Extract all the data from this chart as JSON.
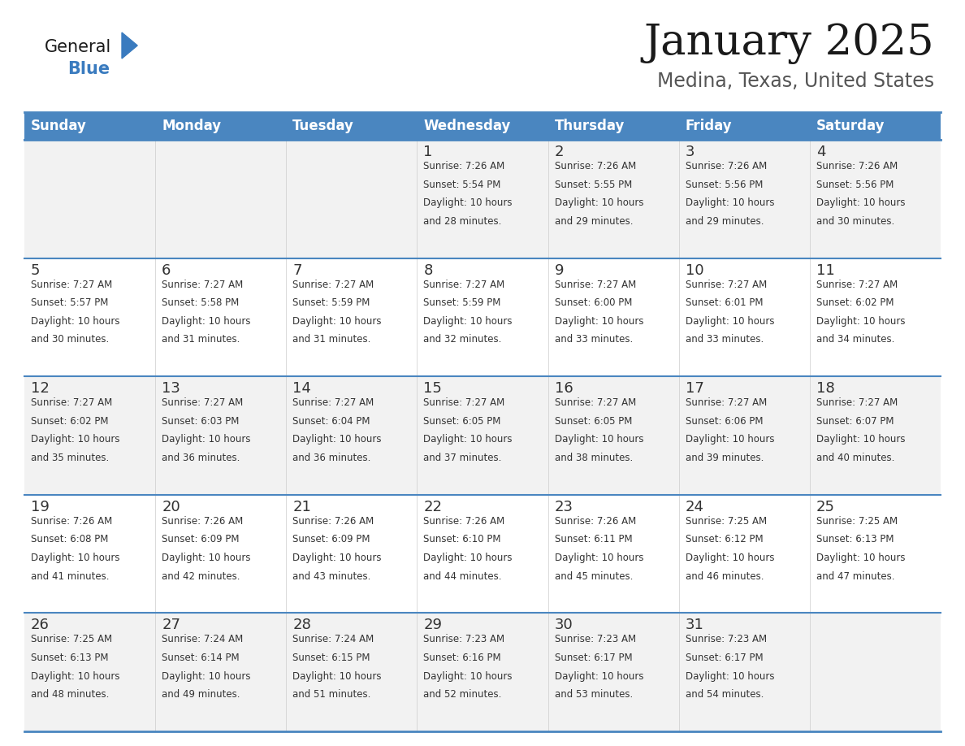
{
  "title": "January 2025",
  "subtitle": "Medina, Texas, United States",
  "header_color": "#4a86c0",
  "header_text_color": "#ffffff",
  "border_color": "#4a86c0",
  "text_color": "#333333",
  "days_of_week": [
    "Sunday",
    "Monday",
    "Tuesday",
    "Wednesday",
    "Thursday",
    "Friday",
    "Saturday"
  ],
  "row_bg_colors": [
    "#f2f2f2",
    "#ffffff",
    "#f2f2f2",
    "#ffffff",
    "#f2f2f2"
  ],
  "calendar_data": [
    [
      {
        "day": "",
        "sunrise": "",
        "sunset": "",
        "daylight": ""
      },
      {
        "day": "",
        "sunrise": "",
        "sunset": "",
        "daylight": ""
      },
      {
        "day": "",
        "sunrise": "",
        "sunset": "",
        "daylight": ""
      },
      {
        "day": "1",
        "sunrise": "7:26 AM",
        "sunset": "5:54 PM",
        "daylight": "10 hours and 28 minutes."
      },
      {
        "day": "2",
        "sunrise": "7:26 AM",
        "sunset": "5:55 PM",
        "daylight": "10 hours and 29 minutes."
      },
      {
        "day": "3",
        "sunrise": "7:26 AM",
        "sunset": "5:56 PM",
        "daylight": "10 hours and 29 minutes."
      },
      {
        "day": "4",
        "sunrise": "7:26 AM",
        "sunset": "5:56 PM",
        "daylight": "10 hours and 30 minutes."
      }
    ],
    [
      {
        "day": "5",
        "sunrise": "7:27 AM",
        "sunset": "5:57 PM",
        "daylight": "10 hours and 30 minutes."
      },
      {
        "day": "6",
        "sunrise": "7:27 AM",
        "sunset": "5:58 PM",
        "daylight": "10 hours and 31 minutes."
      },
      {
        "day": "7",
        "sunrise": "7:27 AM",
        "sunset": "5:59 PM",
        "daylight": "10 hours and 31 minutes."
      },
      {
        "day": "8",
        "sunrise": "7:27 AM",
        "sunset": "5:59 PM",
        "daylight": "10 hours and 32 minutes."
      },
      {
        "day": "9",
        "sunrise": "7:27 AM",
        "sunset": "6:00 PM",
        "daylight": "10 hours and 33 minutes."
      },
      {
        "day": "10",
        "sunrise": "7:27 AM",
        "sunset": "6:01 PM",
        "daylight": "10 hours and 33 minutes."
      },
      {
        "day": "11",
        "sunrise": "7:27 AM",
        "sunset": "6:02 PM",
        "daylight": "10 hours and 34 minutes."
      }
    ],
    [
      {
        "day": "12",
        "sunrise": "7:27 AM",
        "sunset": "6:02 PM",
        "daylight": "10 hours and 35 minutes."
      },
      {
        "day": "13",
        "sunrise": "7:27 AM",
        "sunset": "6:03 PM",
        "daylight": "10 hours and 36 minutes."
      },
      {
        "day": "14",
        "sunrise": "7:27 AM",
        "sunset": "6:04 PM",
        "daylight": "10 hours and 36 minutes."
      },
      {
        "day": "15",
        "sunrise": "7:27 AM",
        "sunset": "6:05 PM",
        "daylight": "10 hours and 37 minutes."
      },
      {
        "day": "16",
        "sunrise": "7:27 AM",
        "sunset": "6:05 PM",
        "daylight": "10 hours and 38 minutes."
      },
      {
        "day": "17",
        "sunrise": "7:27 AM",
        "sunset": "6:06 PM",
        "daylight": "10 hours and 39 minutes."
      },
      {
        "day": "18",
        "sunrise": "7:27 AM",
        "sunset": "6:07 PM",
        "daylight": "10 hours and 40 minutes."
      }
    ],
    [
      {
        "day": "19",
        "sunrise": "7:26 AM",
        "sunset": "6:08 PM",
        "daylight": "10 hours and 41 minutes."
      },
      {
        "day": "20",
        "sunrise": "7:26 AM",
        "sunset": "6:09 PM",
        "daylight": "10 hours and 42 minutes."
      },
      {
        "day": "21",
        "sunrise": "7:26 AM",
        "sunset": "6:09 PM",
        "daylight": "10 hours and 43 minutes."
      },
      {
        "day": "22",
        "sunrise": "7:26 AM",
        "sunset": "6:10 PM",
        "daylight": "10 hours and 44 minutes."
      },
      {
        "day": "23",
        "sunrise": "7:26 AM",
        "sunset": "6:11 PM",
        "daylight": "10 hours and 45 minutes."
      },
      {
        "day": "24",
        "sunrise": "7:25 AM",
        "sunset": "6:12 PM",
        "daylight": "10 hours and 46 minutes."
      },
      {
        "day": "25",
        "sunrise": "7:25 AM",
        "sunset": "6:13 PM",
        "daylight": "10 hours and 47 minutes."
      }
    ],
    [
      {
        "day": "26",
        "sunrise": "7:25 AM",
        "sunset": "6:13 PM",
        "daylight": "10 hours and 48 minutes."
      },
      {
        "day": "27",
        "sunrise": "7:24 AM",
        "sunset": "6:14 PM",
        "daylight": "10 hours and 49 minutes."
      },
      {
        "day": "28",
        "sunrise": "7:24 AM",
        "sunset": "6:15 PM",
        "daylight": "10 hours and 51 minutes."
      },
      {
        "day": "29",
        "sunrise": "7:23 AM",
        "sunset": "6:16 PM",
        "daylight": "10 hours and 52 minutes."
      },
      {
        "day": "30",
        "sunrise": "7:23 AM",
        "sunset": "6:17 PM",
        "daylight": "10 hours and 53 minutes."
      },
      {
        "day": "31",
        "sunrise": "7:23 AM",
        "sunset": "6:17 PM",
        "daylight": "10 hours and 54 minutes."
      },
      {
        "day": "",
        "sunrise": "",
        "sunset": "",
        "daylight": ""
      }
    ]
  ],
  "logo_color_general": "#1a1a1a",
  "logo_color_blue": "#3a7bbf",
  "title_fontsize": 38,
  "subtitle_fontsize": 17,
  "header_fontsize": 12,
  "day_number_fontsize": 13,
  "cell_text_fontsize": 8.5
}
